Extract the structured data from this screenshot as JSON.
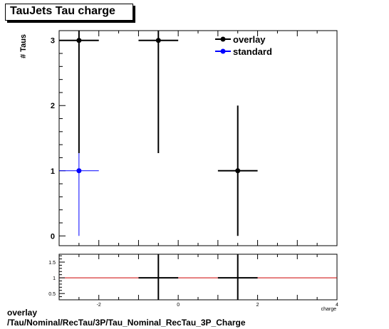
{
  "title": "TauJets Tau charge",
  "footer": {
    "line1": "overlay",
    "line2": "/Tau/Nominal/RecTau/3P/Tau_Nominal_RecTau_3P_Charge"
  },
  "colors": {
    "overlay": "#000000",
    "standard": "#0000ff",
    "ratio_line": "#cc0000"
  },
  "chart_data": [
    {
      "type": "scatter",
      "title": "TauJets Tau charge",
      "ylabel": "# Taus",
      "xlabel": "charge",
      "xlim": [
        -3,
        4
      ],
      "ylim": [
        -0.15,
        3.15
      ],
      "yticks": [
        0,
        1,
        2,
        3
      ],
      "grid": false,
      "legend_position": "top-right",
      "series": [
        {
          "name": "overlay",
          "points": [
            {
              "x": -2.5,
              "xerr": 0.5,
              "y": 3,
              "ylow": 1.27,
              "yhigh": 4.73
            },
            {
              "x": -0.5,
              "xerr": 0.5,
              "y": 3,
              "ylow": 1.27,
              "yhigh": 4.73
            },
            {
              "x": 1.5,
              "xerr": 0.5,
              "y": 1,
              "ylow": 0,
              "yhigh": 2
            }
          ]
        },
        {
          "name": "standard",
          "points": [
            {
              "x": -2.5,
              "xerr": 0.5,
              "y": 1,
              "ylow": 0,
              "yhigh": 2
            }
          ]
        }
      ]
    },
    {
      "type": "line",
      "xlabel": "charge",
      "xlim": [
        -3,
        4
      ],
      "ylim": [
        0.3,
        1.75
      ],
      "xticks": [
        -2,
        0,
        2,
        4
      ],
      "yticks": [
        0.5,
        1,
        1.5
      ],
      "ytick_labels": [
        "0.5",
        "1",
        "1.5"
      ],
      "reference_line": 1,
      "points": [
        {
          "x": -0.5,
          "xerr": 0.5,
          "y": 1,
          "ylow": 0,
          "yhigh": 3
        },
        {
          "x": 1.5,
          "xerr": 0.5,
          "y": 1,
          "ylow": 0,
          "yhigh": 3
        }
      ]
    }
  ]
}
